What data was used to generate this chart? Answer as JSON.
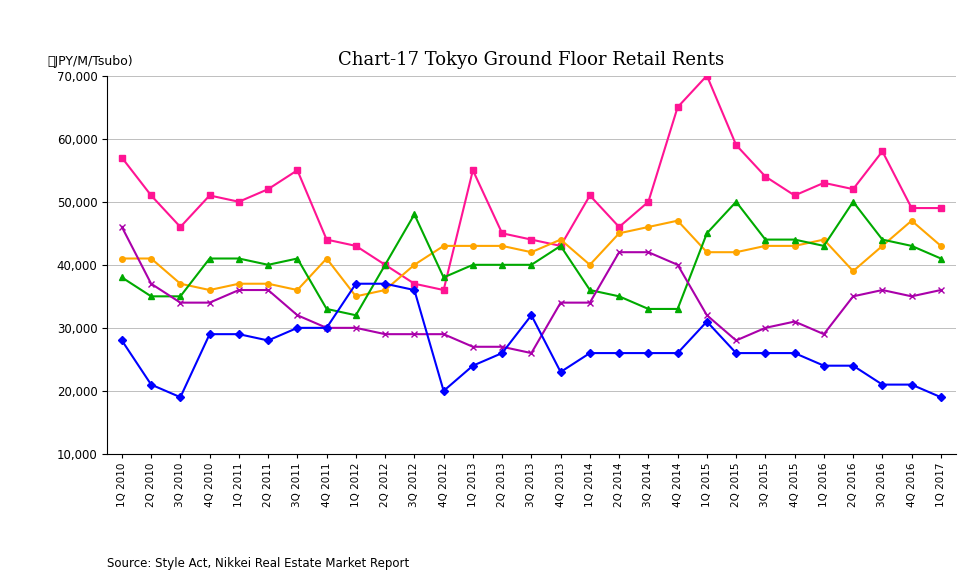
{
  "title": "Chart-17 Tokyo Ground Floor Retail Rents",
  "ylabel_text": "（JPY/M/Tsubo)",
  "source": "Source: Style Act, Nikkei Real Estate Market Report",
  "ylim": [
    10000,
    70000
  ],
  "yticks": [
    10000,
    20000,
    30000,
    40000,
    50000,
    60000,
    70000
  ],
  "x_labels": [
    "1Q 2010",
    "2Q 2010",
    "3Q 2010",
    "4Q 2010",
    "1Q 2011",
    "2Q 2011",
    "3Q 2011",
    "4Q 2011",
    "1Q 2012",
    "2Q 2012",
    "3Q 2012",
    "4Q 2012",
    "1Q 2013",
    "2Q 2013",
    "3Q 2013",
    "4Q 2013",
    "1Q 2014",
    "2Q 2014",
    "3Q 2014",
    "4Q 2014",
    "1Q 2015",
    "2Q 2015",
    "3Q 2015",
    "4Q 2015",
    "1Q 2016",
    "2Q 2016",
    "3Q 2016",
    "4Q 2016",
    "1Q 2017"
  ],
  "series": {
    "Ginza": {
      "color": "#FF1493",
      "marker": "s",
      "values": [
        57000,
        51000,
        46000,
        51000,
        50000,
        52000,
        55000,
        44000,
        43000,
        40000,
        37000,
        36000,
        55000,
        45000,
        44000,
        43000,
        51000,
        46000,
        50000,
        65000,
        70000,
        59000,
        54000,
        51000,
        53000,
        52000,
        58000,
        49000,
        49000
      ]
    },
    "Omotesando": {
      "color": "#FFA500",
      "marker": "o",
      "values": [
        41000,
        41000,
        37000,
        36000,
        37000,
        37000,
        36000,
        41000,
        35000,
        36000,
        40000,
        43000,
        43000,
        43000,
        42000,
        44000,
        40000,
        45000,
        46000,
        47000,
        42000,
        42000,
        43000,
        43000,
        44000,
        39000,
        43000,
        47000,
        43000
      ]
    },
    "Shinjuku": {
      "color": "#00AA00",
      "marker": "^",
      "values": [
        38000,
        35000,
        35000,
        41000,
        41000,
        40000,
        41000,
        33000,
        32000,
        40000,
        48000,
        38000,
        40000,
        40000,
        40000,
        43000,
        36000,
        35000,
        33000,
        33000,
        45000,
        50000,
        44000,
        44000,
        43000,
        50000,
        44000,
        43000,
        41000
      ]
    },
    "Shibuya": {
      "color": "#AA00AA",
      "marker": "x",
      "values": [
        46000,
        37000,
        34000,
        34000,
        36000,
        36000,
        32000,
        30000,
        30000,
        29000,
        29000,
        29000,
        27000,
        27000,
        26000,
        34000,
        34000,
        42000,
        42000,
        40000,
        32000,
        28000,
        30000,
        31000,
        29000,
        35000,
        36000,
        35000,
        36000
      ]
    },
    "Ikebukuro": {
      "color": "#0000FF",
      "marker": "D",
      "values": [
        28000,
        21000,
        19000,
        29000,
        29000,
        28000,
        30000,
        30000,
        37000,
        37000,
        36000,
        20000,
        24000,
        26000,
        32000,
        23000,
        26000,
        26000,
        26000,
        26000,
        31000,
        26000,
        26000,
        26000,
        24000,
        24000,
        21000,
        21000,
        19000
      ]
    }
  }
}
